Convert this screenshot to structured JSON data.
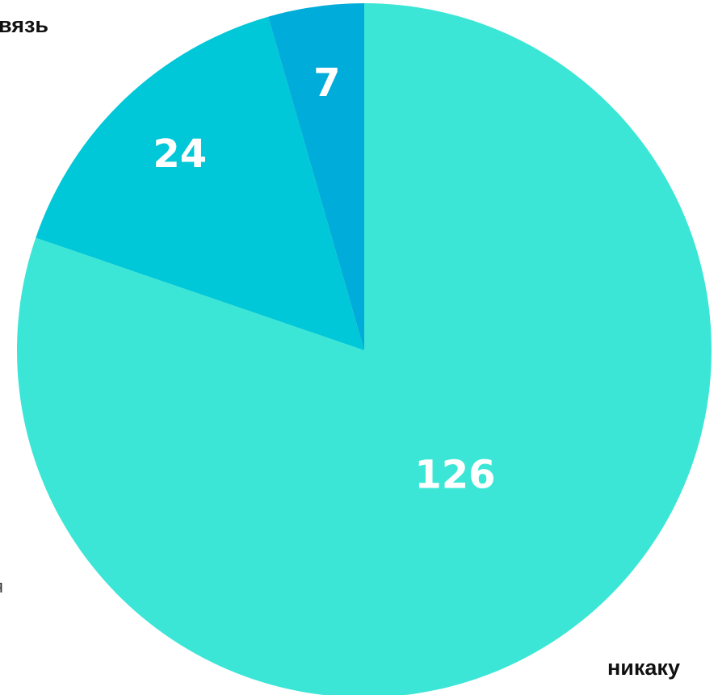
{
  "chart_data": {
    "type": "pie",
    "values": [
      126,
      24,
      7
    ],
    "colors": [
      "#3ce6d6",
      "#00c8d8",
      "#00acd9"
    ],
    "annotations": [
      "вязь",
      "я",
      "никаку"
    ]
  }
}
